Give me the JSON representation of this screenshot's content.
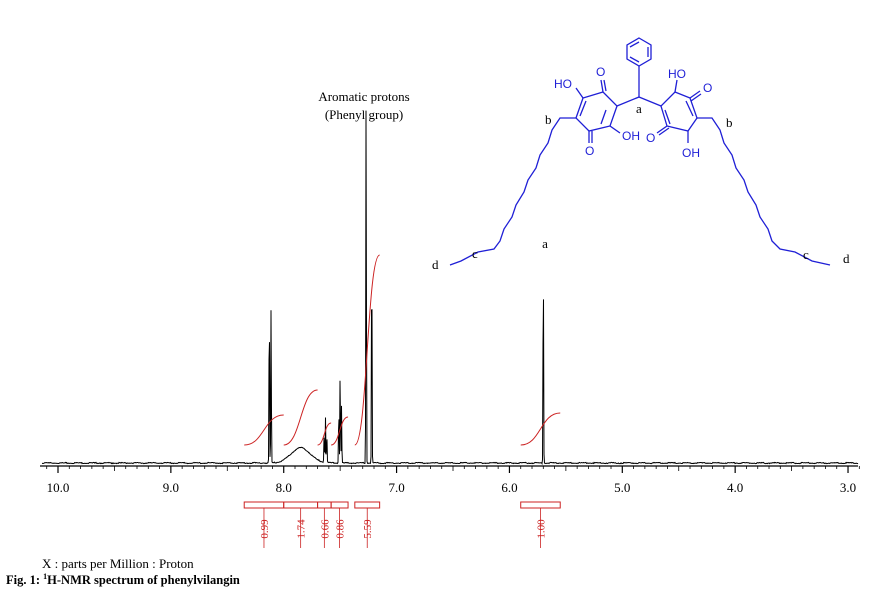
{
  "chart_data": {
    "type": "line",
    "title": "",
    "x_axis": {
      "range": [
        10.2,
        2.9
      ],
      "reversed": true,
      "ticks": [
        10.0,
        9.0,
        8.0,
        7.0,
        6.0,
        5.0,
        4.0,
        3.0
      ],
      "tick_labels": [
        "10.0",
        "9.0",
        "8.0",
        "7.0",
        "6.0",
        "5.0",
        "4.0",
        "3.0"
      ],
      "label": "X : parts per Million : Proton"
    },
    "peaks": [
      {
        "ppm": 8.12,
        "intensity": 0.44,
        "multiplicity": "d"
      },
      {
        "ppm": 7.85,
        "intensity": 0.04,
        "shape": "broad"
      },
      {
        "ppm": 7.63,
        "intensity": 0.12,
        "multiplicity": "t"
      },
      {
        "ppm": 7.5,
        "intensity": 0.25,
        "multiplicity": "t"
      },
      {
        "ppm": 7.27,
        "intensity": 1.0,
        "note": "Aromatic protons (Phenyl group)"
      },
      {
        "ppm": 7.22,
        "intensity": 0.6
      },
      {
        "ppm": 5.7,
        "intensity": 0.56,
        "label": "a"
      }
    ],
    "integrals": [
      {
        "from": 8.35,
        "to": 8.0,
        "value": "0.99"
      },
      {
        "from": 8.0,
        "to": 7.7,
        "value": "1.74"
      },
      {
        "from": 7.7,
        "to": 7.58,
        "value": "0.66"
      },
      {
        "from": 7.58,
        "to": 7.43,
        "value": "0.86"
      },
      {
        "from": 7.37,
        "to": 7.15,
        "value": "5.59"
      },
      {
        "from": 5.9,
        "to": 5.55,
        "value": "1.00"
      }
    ],
    "annotations": {
      "aromatic_line1": "Aromatic protons",
      "aromatic_line2": "(Phenyl group)",
      "peak_a": "a"
    }
  },
  "structure": {
    "labels": {
      "a": "a",
      "b_left": "b",
      "b_right": "b",
      "c_left": "c",
      "c_right": "c",
      "d_left": "d",
      "d_right": "d"
    },
    "atoms": {
      "ho_left": "HO",
      "o_left_top": "O",
      "o_left_bottom": "O",
      "oh_left": "OH",
      "ho_right": "HO",
      "o_right_top": "O",
      "o_right_bottom": "O",
      "oh_right": "OH"
    },
    "color": "#1f1fd6"
  },
  "figure": {
    "caption_prefix": "Fig. 1: ",
    "caption_sup": "1",
    "caption_text": "H-NMR spectrum of phenylvilangin"
  },
  "colors": {
    "spectrum": "#000000",
    "integral": "#cc2222",
    "structure": "#1f1fd6"
  }
}
